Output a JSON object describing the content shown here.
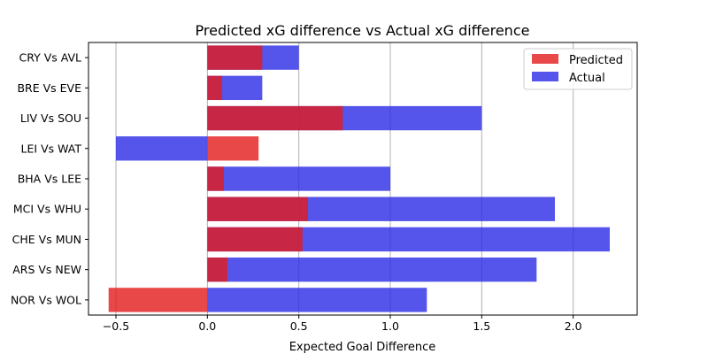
{
  "chart_data": {
    "type": "bar",
    "orientation": "horizontal",
    "title": "Predicted xG difference vs Actual xG difference",
    "xlabel": "Expected Goal Difference",
    "ylabel": "",
    "xlim": [
      -0.65,
      2.35
    ],
    "xticks": [
      -0.5,
      0.0,
      0.5,
      1.0,
      1.5,
      2.0
    ],
    "xtick_labels": [
      "−0.5",
      "0.0",
      "0.5",
      "1.0",
      "1.5",
      "2.0"
    ],
    "grid": "vertical",
    "legend_position": "top-right",
    "categories": [
      "CRY Vs AVL",
      "BRE Vs EVE",
      "LIV Vs SOU",
      "LEI Vs WAT",
      "BHA Vs LEE",
      "MCI Vs WHU",
      "CHE Vs MUN",
      "ARS Vs NEW",
      "NOR Vs WOL"
    ],
    "series": [
      {
        "name": "Predicted",
        "color": "#e41a1c",
        "values": [
          0.3,
          0.08,
          0.74,
          0.28,
          0.09,
          0.55,
          0.52,
          0.11,
          -0.54
        ]
      },
      {
        "name": "Actual",
        "color": "#2a2ae6",
        "values": [
          0.5,
          0.3,
          1.5,
          -0.5,
          1.0,
          1.9,
          2.2,
          1.8,
          1.2
        ]
      }
    ]
  }
}
